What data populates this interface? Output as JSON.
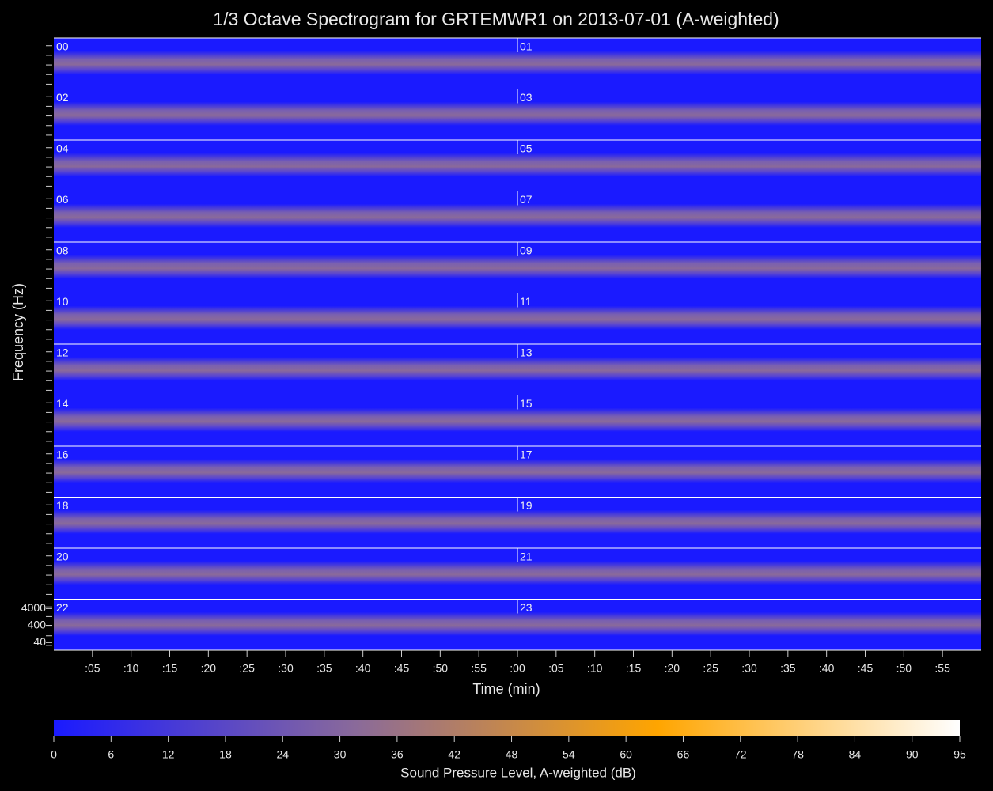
{
  "chart_data": {
    "type": "spectrogram",
    "title": "1/3 Octave Spectrogram for GRTEMWR1 on 2013-07-01 (A-weighted)",
    "x_label": "Time (min)",
    "y_label": "Frequency (Hz)",
    "panels": [
      "00",
      "01",
      "02",
      "03",
      "04",
      "05",
      "06",
      "07",
      "08",
      "09",
      "10",
      "11",
      "12",
      "13",
      "14",
      "15",
      "16",
      "17",
      "18",
      "19",
      "20",
      "21",
      "22",
      "23"
    ],
    "xlim": [
      0,
      120
    ],
    "xticks": [
      {
        "value": 5,
        "label": ":05"
      },
      {
        "value": 10,
        "label": ":10"
      },
      {
        "value": 15,
        "label": ":15"
      },
      {
        "value": 20,
        "label": ":20"
      },
      {
        "value": 25,
        "label": ":25"
      },
      {
        "value": 30,
        "label": ":30"
      },
      {
        "value": 35,
        "label": ":35"
      },
      {
        "value": 40,
        "label": ":40"
      },
      {
        "value": 45,
        "label": ":45"
      },
      {
        "value": 50,
        "label": ":50"
      },
      {
        "value": 55,
        "label": ":55"
      },
      {
        "value": 60,
        "label": ":00"
      },
      {
        "value": 65,
        "label": ":05"
      },
      {
        "value": 70,
        "label": ":10"
      },
      {
        "value": 75,
        "label": ":15"
      },
      {
        "value": 80,
        "label": ":20"
      },
      {
        "value": 85,
        "label": ":25"
      },
      {
        "value": 90,
        "label": ":30"
      },
      {
        "value": 95,
        "label": ":35"
      },
      {
        "value": 100,
        "label": ":40"
      },
      {
        "value": 105,
        "label": ":45"
      },
      {
        "value": 110,
        "label": ":50"
      },
      {
        "value": 115,
        "label": ":55"
      }
    ],
    "ylim": [
      14,
      14000
    ],
    "log_y": true,
    "yticks": [
      4000,
      400,
      40
    ],
    "colorbar": {
      "label": "Sound Pressure Level, A-weighted (dB)",
      "lim": [
        0,
        95
      ],
      "ticks": [
        0,
        6,
        12,
        18,
        24,
        30,
        36,
        42,
        48,
        54,
        60,
        66,
        72,
        78,
        84,
        90,
        95
      ],
      "colors": [
        "#1a1aff",
        "#8a6a9a",
        "#ffa500",
        "#ffffff"
      ]
    }
  }
}
